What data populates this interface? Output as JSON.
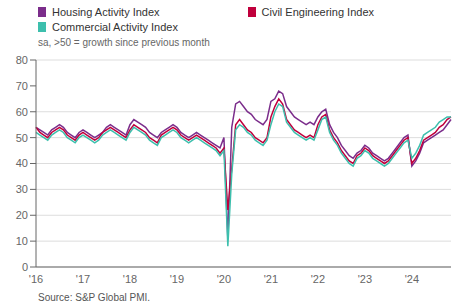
{
  "chart_data": {
    "type": "line",
    "subtitle": "sa, >50 = growth since previous month",
    "annotations": [
      "Source: S&P Global PMI."
    ],
    "categories": [
      "'16",
      null,
      null,
      null,
      null,
      null,
      null,
      null,
      null,
      null,
      null,
      null,
      "'17",
      null,
      null,
      null,
      null,
      null,
      null,
      null,
      null,
      null,
      null,
      null,
      "'18",
      null,
      null,
      null,
      null,
      null,
      null,
      null,
      null,
      null,
      null,
      null,
      "'19",
      null,
      null,
      null,
      null,
      null,
      null,
      null,
      null,
      null,
      null,
      null,
      "'20",
      null,
      null,
      null,
      null,
      null,
      null,
      null,
      null,
      null,
      null,
      null,
      "'21",
      null,
      null,
      null,
      null,
      null,
      null,
      null,
      null,
      null,
      null,
      null,
      "'22",
      null,
      null,
      null,
      null,
      null,
      null,
      null,
      null,
      null,
      null,
      null,
      "'23",
      null,
      null,
      null,
      null,
      null,
      null,
      null,
      null,
      null,
      null,
      null,
      "'24",
      null,
      null,
      null,
      null,
      null,
      null,
      null,
      null,
      null,
      null
    ],
    "series": [
      {
        "name": "Housing Activity Index",
        "color": "#7b2d8b",
        "values": [
          54,
          53,
          52,
          51,
          53,
          54,
          55,
          54,
          52,
          51,
          50,
          52,
          53,
          52,
          51,
          50,
          51,
          52,
          54,
          55,
          54,
          53,
          52,
          51,
          55,
          57,
          56,
          55,
          54,
          52,
          51,
          50,
          52,
          53,
          54,
          55,
          54,
          52,
          51,
          50,
          51,
          52,
          51,
          50,
          49,
          48,
          47,
          46,
          50,
          11,
          54,
          63,
          64,
          62,
          60,
          59,
          57,
          56,
          55,
          57,
          64,
          65,
          68,
          67,
          62,
          60,
          58,
          57,
          56,
          55,
          56,
          55,
          58,
          60,
          61,
          55,
          52,
          50,
          47,
          45,
          43,
          42,
          44,
          45,
          47,
          46,
          44,
          43,
          42,
          41,
          42,
          44,
          46,
          48,
          50,
          51,
          39,
          41,
          44,
          48,
          49,
          50,
          51,
          52,
          53,
          55,
          57
        ]
      },
      {
        "name": "Civil Engineering Index",
        "color": "#c0003c",
        "values": [
          54,
          52,
          51,
          50,
          52,
          53,
          54,
          53,
          51,
          50,
          49,
          51,
          52,
          51,
          50,
          49,
          50,
          52,
          53,
          54,
          53,
          52,
          51,
          50,
          53,
          55,
          54,
          53,
          52,
          50,
          49,
          48,
          51,
          52,
          53,
          54,
          53,
          51,
          50,
          49,
          50,
          51,
          50,
          49,
          48,
          47,
          46,
          44,
          46,
          22,
          38,
          55,
          57,
          55,
          53,
          52,
          50,
          49,
          48,
          50,
          58,
          62,
          65,
          63,
          57,
          55,
          53,
          52,
          51,
          50,
          51,
          50,
          55,
          58,
          59,
          53,
          50,
          48,
          45,
          43,
          41,
          40,
          43,
          44,
          46,
          45,
          43,
          42,
          41,
          40,
          41,
          43,
          45,
          47,
          49,
          50,
          40,
          42,
          45,
          49,
          50,
          51,
          52,
          54,
          55,
          57,
          58
        ]
      },
      {
        "name": "Commercial Activity Index",
        "color": "#3dbfad",
        "values": [
          52,
          51,
          50,
          49,
          51,
          52,
          53,
          52,
          50,
          49,
          48,
          50,
          51,
          50,
          49,
          48,
          49,
          51,
          52,
          53,
          52,
          51,
          50,
          49,
          52,
          54,
          53,
          52,
          51,
          49,
          48,
          47,
          50,
          51,
          52,
          53,
          52,
          50,
          49,
          48,
          49,
          50,
          49,
          48,
          47,
          46,
          45,
          43,
          45,
          8,
          36,
          53,
          55,
          54,
          52,
          51,
          49,
          48,
          47,
          49,
          55,
          60,
          63,
          62,
          56,
          54,
          52,
          51,
          50,
          49,
          50,
          49,
          53,
          57,
          58,
          52,
          49,
          47,
          44,
          42,
          40,
          39,
          42,
          43,
          45,
          44,
          42,
          41,
          40,
          39,
          40,
          42,
          44,
          46,
          48,
          49,
          42,
          44,
          47,
          51,
          52,
          53,
          54,
          56,
          57,
          58,
          58
        ]
      }
    ],
    "ylim": [
      0,
      80
    ],
    "yticks": [
      0,
      10,
      20,
      30,
      40,
      50,
      60,
      70,
      80
    ],
    "grid": true,
    "legend": "top"
  }
}
